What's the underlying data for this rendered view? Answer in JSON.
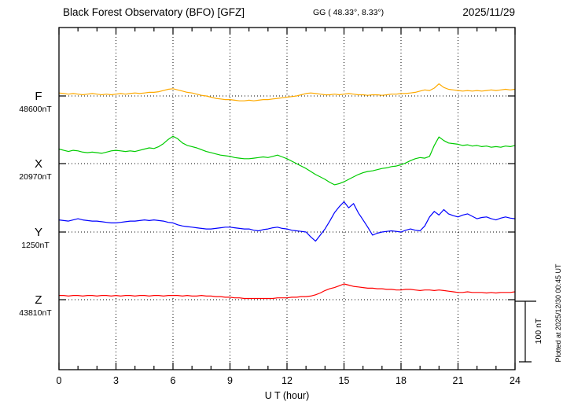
{
  "header": {
    "title": "Black Forest Observatory (BFO)  [GFZ]",
    "coordinates": "GG ( 48.33°,   8.33°)",
    "date": "2025/11/29"
  },
  "axis": {
    "x_label": "U T (hour)"
  },
  "footer": {
    "plotted_at": "Plotted at 2025/12/30 00:45 UT"
  },
  "scale_bar": {
    "label": "100 nT",
    "nT": 100
  },
  "chart_data": {
    "type": "line",
    "title": "Black Forest Observatory (BFO) [GFZ] magnetogram 2025/11/29",
    "xlabel": "U T (hour)",
    "x_range": [
      0,
      24
    ],
    "x_ticks": [
      0,
      3,
      6,
      9,
      12,
      15,
      18,
      21,
      24
    ],
    "x_step_hours": 0.25,
    "units": "nT",
    "grid": "dotted vertical every 3h, dotted horizontal baseline per channel",
    "series": [
      {
        "name": "F",
        "color": "#ffaa00",
        "baseline_label": "48600nT",
        "baseline_nT": 48600,
        "offsets_nT": [
          5,
          4,
          3,
          4,
          3,
          2,
          3,
          4,
          3,
          2,
          3,
          2,
          3,
          4,
          3,
          4,
          5,
          4,
          5,
          6,
          6,
          7,
          9,
          11,
          12,
          10,
          8,
          6,
          5,
          3,
          1,
          0,
          -2,
          -4,
          -5,
          -6,
          -6,
          -7,
          -8,
          -8,
          -7,
          -8,
          -7,
          -6,
          -6,
          -5,
          -4,
          -3,
          -2,
          -1,
          0,
          2,
          4,
          5,
          4,
          3,
          2,
          2,
          3,
          2,
          3,
          4,
          3,
          2,
          2,
          1,
          2,
          2,
          1,
          2,
          3,
          3,
          4,
          4,
          5,
          6,
          8,
          10,
          9,
          13,
          20,
          14,
          11,
          10,
          9,
          8,
          9,
          8,
          9,
          8,
          9,
          10,
          9,
          10,
          11,
          10,
          11
        ]
      },
      {
        "name": "X",
        "color": "#00cc00",
        "baseline_label": "20970nT",
        "baseline_nT": 20970,
        "offsets_nT": [
          24,
          22,
          20,
          22,
          21,
          19,
          18,
          19,
          18,
          17,
          19,
          21,
          22,
          21,
          20,
          21,
          20,
          22,
          24,
          26,
          25,
          28,
          33,
          40,
          45,
          41,
          34,
          30,
          28,
          26,
          23,
          20,
          18,
          16,
          14,
          13,
          12,
          10,
          9,
          8,
          8,
          9,
          10,
          11,
          10,
          12,
          14,
          11,
          8,
          4,
          0,
          -4,
          -8,
          -13,
          -18,
          -22,
          -26,
          -31,
          -35,
          -33,
          -30,
          -26,
          -22,
          -18,
          -15,
          -13,
          -12,
          -10,
          -8,
          -7,
          -5,
          -4,
          -2,
          1,
          5,
          8,
          10,
          9,
          12,
          30,
          44,
          38,
          34,
          33,
          32,
          30,
          31,
          29,
          30,
          28,
          29,
          27,
          28,
          27,
          29,
          28,
          30
        ]
      },
      {
        "name": "Y",
        "color": "#0000ff",
        "baseline_label": "1250nT",
        "baseline_nT": 1250,
        "offsets_nT": [
          20,
          19,
          18,
          20,
          22,
          20,
          19,
          18,
          18,
          17,
          16,
          15,
          15,
          16,
          17,
          18,
          18,
          19,
          20,
          19,
          20,
          19,
          18,
          16,
          15,
          12,
          10,
          9,
          8,
          7,
          6,
          5,
          5,
          6,
          7,
          8,
          8,
          7,
          6,
          5,
          5,
          3,
          2,
          4,
          5,
          7,
          8,
          6,
          5,
          3,
          2,
          1,
          0,
          -8,
          -15,
          -5,
          5,
          18,
          32,
          42,
          50,
          40,
          47,
          32,
          20,
          8,
          -5,
          -2,
          0,
          1,
          2,
          1,
          0,
          3,
          5,
          3,
          2,
          10,
          25,
          34,
          28,
          37,
          30,
          27,
          25,
          28,
          30,
          26,
          22,
          24,
          25,
          22,
          20,
          23,
          25,
          23,
          22
        ]
      },
      {
        "name": "Z",
        "color": "#ff0000",
        "baseline_label": "43810nT",
        "baseline_nT": 43810,
        "offsets_nT": [
          7,
          7,
          6,
          7,
          7,
          6,
          7,
          7,
          6,
          7,
          7,
          6,
          7,
          6,
          7,
          7,
          6,
          7,
          7,
          6,
          7,
          7,
          6,
          7,
          7,
          7,
          6,
          7,
          6,
          6,
          7,
          6,
          6,
          5,
          5,
          4,
          4,
          3,
          3,
          2,
          2,
          2,
          2,
          2,
          2,
          2,
          3,
          3,
          3,
          4,
          4,
          5,
          5,
          6,
          8,
          11,
          15,
          18,
          20,
          23,
          26,
          24,
          22,
          21,
          20,
          19,
          19,
          18,
          18,
          17,
          17,
          16,
          16,
          17,
          17,
          16,
          15,
          16,
          16,
          15,
          16,
          15,
          14,
          13,
          12,
          12,
          13,
          12,
          12,
          12,
          11,
          12,
          11,
          12,
          12,
          12,
          13
        ]
      }
    ]
  }
}
